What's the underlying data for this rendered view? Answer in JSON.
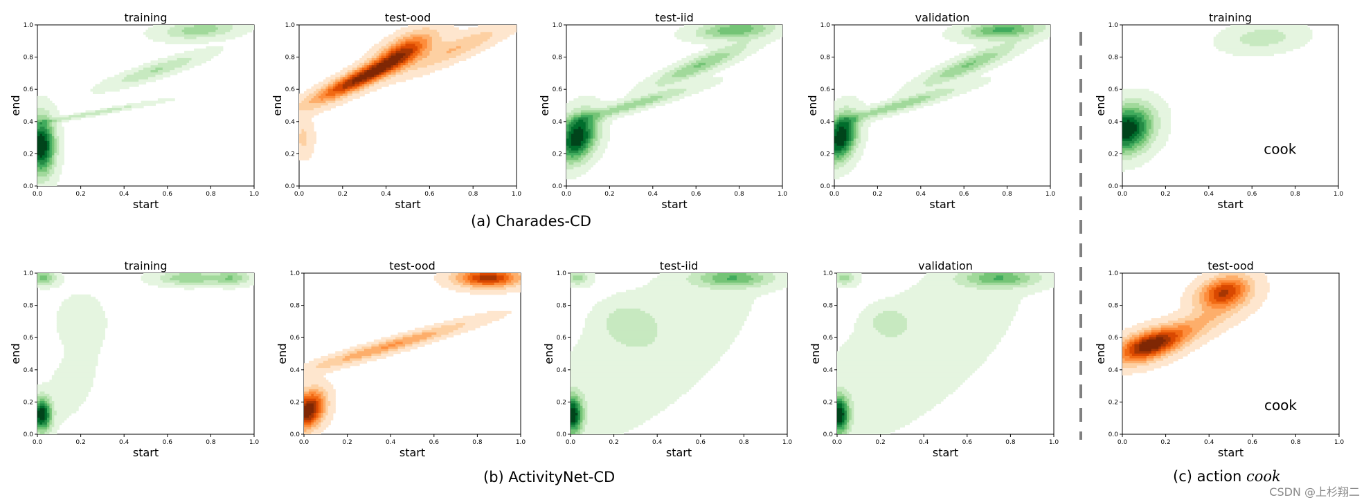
{
  "colors": {
    "greens": [
      "#e5f5e0",
      "#c7e9c0",
      "#a1d99b",
      "#74c476",
      "#41ab5d",
      "#238b45",
      "#006d2c",
      "#00441b"
    ],
    "oranges": [
      "#fee6ce",
      "#fdd0a2",
      "#fdae6b",
      "#fd8d3c",
      "#f16913",
      "#d94801",
      "#a63603",
      "#7f2704"
    ],
    "divider": "#808080"
  },
  "captions": {
    "a": "(a) Charades-CD",
    "b": "(b) ActivityNet-CD",
    "c_prefix": "(c)  action ",
    "c_italic": "cook"
  },
  "watermark": "CSDN @上杉翔二",
  "chart_data": [
    {
      "id": "cha-training",
      "type": "kde-contour",
      "dataset": "Charades-CD",
      "title": "training",
      "xlabel": "start",
      "ylabel": "end",
      "xlim": [
        0,
        1
      ],
      "ylim": [
        0,
        1
      ],
      "ticks": [
        "0.0",
        "0.2",
        "0.4",
        "0.6",
        "0.8",
        "1.0"
      ],
      "cmap": "greens",
      "blobs": [
        {
          "x": 0.02,
          "y": 0.25,
          "sx": 0.04,
          "sy": 0.12,
          "rho": 0,
          "w": 1.0
        },
        {
          "x": 0.25,
          "y": 0.45,
          "sx": 0.2,
          "sy": 0.05,
          "rho": 0.98,
          "w": 0.25
        },
        {
          "x": 0.55,
          "y": 0.72,
          "sx": 0.15,
          "sy": 0.07,
          "rho": 0.9,
          "w": 0.28
        },
        {
          "x": 0.75,
          "y": 0.97,
          "sx": 0.12,
          "sy": 0.04,
          "rho": 0.3,
          "w": 0.35
        }
      ]
    },
    {
      "id": "cha-test-ood",
      "type": "kde-contour",
      "dataset": "Charades-CD",
      "title": "test-ood",
      "xlabel": "start",
      "ylabel": "end",
      "xlim": [
        0,
        1
      ],
      "ylim": [
        0,
        1
      ],
      "ticks": [
        "0.0",
        "0.2",
        "0.4",
        "0.6",
        "0.8",
        "1.0"
      ],
      "cmap": "oranges",
      "blobs": [
        {
          "x": 0.3,
          "y": 0.68,
          "sx": 0.16,
          "sy": 0.11,
          "rho": 0.92,
          "w": 1.0
        },
        {
          "x": 0.48,
          "y": 0.85,
          "sx": 0.09,
          "sy": 0.08,
          "rho": 0.7,
          "w": 0.6
        },
        {
          "x": 0.72,
          "y": 0.85,
          "sx": 0.16,
          "sy": 0.1,
          "rho": 0.9,
          "w": 0.3
        },
        {
          "x": 0.02,
          "y": 0.3,
          "sx": 0.03,
          "sy": 0.08,
          "rho": 0,
          "w": 0.2
        }
      ]
    },
    {
      "id": "cha-test-iid",
      "type": "kde-contour",
      "dataset": "Charades-CD",
      "title": "test-iid",
      "xlabel": "start",
      "ylabel": "end",
      "xlim": [
        0,
        1
      ],
      "ylim": [
        0,
        1
      ],
      "ticks": [
        "0.0",
        "0.2",
        "0.4",
        "0.6",
        "0.8",
        "1.0"
      ],
      "cmap": "greens",
      "blobs": [
        {
          "x": 0.05,
          "y": 0.3,
          "sx": 0.06,
          "sy": 0.1,
          "rho": 0.3,
          "w": 1.0
        },
        {
          "x": 0.3,
          "y": 0.5,
          "sx": 0.2,
          "sy": 0.08,
          "rho": 0.95,
          "w": 0.35
        },
        {
          "x": 0.62,
          "y": 0.75,
          "sx": 0.15,
          "sy": 0.09,
          "rho": 0.9,
          "w": 0.4
        },
        {
          "x": 0.78,
          "y": 0.97,
          "sx": 0.12,
          "sy": 0.04,
          "rho": 0.3,
          "w": 0.5
        }
      ]
    },
    {
      "id": "cha-validation",
      "type": "kde-contour",
      "dataset": "Charades-CD",
      "title": "validation",
      "xlabel": "start",
      "ylabel": "end",
      "xlim": [
        0,
        1
      ],
      "ylim": [
        0,
        1
      ],
      "ticks": [
        "0.0",
        "0.2",
        "0.4",
        "0.6",
        "0.8",
        "1.0"
      ],
      "cmap": "greens",
      "blobs": [
        {
          "x": 0.03,
          "y": 0.3,
          "sx": 0.05,
          "sy": 0.1,
          "rho": 0.3,
          "w": 1.0
        },
        {
          "x": 0.3,
          "y": 0.5,
          "sx": 0.2,
          "sy": 0.08,
          "rho": 0.95,
          "w": 0.35
        },
        {
          "x": 0.62,
          "y": 0.75,
          "sx": 0.15,
          "sy": 0.09,
          "rho": 0.9,
          "w": 0.4
        },
        {
          "x": 0.78,
          "y": 0.97,
          "sx": 0.12,
          "sy": 0.04,
          "rho": 0.3,
          "w": 0.55
        }
      ]
    },
    {
      "id": "cha-cook-training",
      "type": "kde-contour",
      "dataset": "Charades-CD",
      "action": "cook",
      "title": "training",
      "xlabel": "start",
      "ylabel": "end",
      "xlim": [
        0,
        1
      ],
      "ylim": [
        0,
        1
      ],
      "ticks": [
        "0.0",
        "0.2",
        "0.4",
        "0.6",
        "0.8",
        "1.0"
      ],
      "cmap": "greens",
      "annotation": "cook",
      "blobs": [
        {
          "x": 0.02,
          "y": 0.35,
          "sx": 0.08,
          "sy": 0.1,
          "rho": 0.2,
          "w": 1.0
        },
        {
          "x": 0.65,
          "y": 0.92,
          "sx": 0.12,
          "sy": 0.06,
          "rho": 0.2,
          "w": 0.22
        }
      ]
    },
    {
      "id": "anet-training",
      "type": "kde-contour",
      "dataset": "ActivityNet-CD",
      "title": "training",
      "xlabel": "start",
      "ylabel": "end",
      "xlim": [
        0,
        1
      ],
      "ylim": [
        0,
        1
      ],
      "ticks": [
        "0.0",
        "0.2",
        "0.4",
        "0.6",
        "0.8",
        "1.0"
      ],
      "cmap": "greens",
      "blobs": [
        {
          "x": 0.02,
          "y": 0.12,
          "sx": 0.03,
          "sy": 0.07,
          "rho": 0,
          "w": 1.0
        },
        {
          "x": 0.03,
          "y": 0.97,
          "sx": 0.04,
          "sy": 0.03,
          "rho": 0,
          "w": 0.45
        },
        {
          "x": 0.7,
          "y": 0.97,
          "sx": 0.1,
          "sy": 0.03,
          "rho": 0,
          "w": 0.4
        },
        {
          "x": 0.9,
          "y": 0.97,
          "sx": 0.06,
          "sy": 0.03,
          "rho": 0,
          "w": 0.35
        },
        {
          "x": 0.2,
          "y": 0.7,
          "sx": 0.08,
          "sy": 0.12,
          "rho": 0,
          "w": 0.1
        },
        {
          "x": 0.15,
          "y": 0.3,
          "sx": 0.08,
          "sy": 0.15,
          "rho": 0.5,
          "w": 0.1
        }
      ]
    },
    {
      "id": "anet-test-ood",
      "type": "kde-contour",
      "dataset": "ActivityNet-CD",
      "title": "test-ood",
      "xlabel": "start",
      "ylabel": "end",
      "xlim": [
        0,
        1
      ],
      "ylim": [
        0,
        1
      ],
      "ticks": [
        "0.0",
        "0.2",
        "0.4",
        "0.6",
        "0.8",
        "1.0"
      ],
      "cmap": "oranges",
      "blobs": [
        {
          "x": 0.02,
          "y": 0.15,
          "sx": 0.05,
          "sy": 0.08,
          "rho": 0.3,
          "w": 1.0
        },
        {
          "x": 0.4,
          "y": 0.55,
          "sx": 0.25,
          "sy": 0.1,
          "rho": 0.96,
          "w": 0.4
        },
        {
          "x": 0.85,
          "y": 0.97,
          "sx": 0.1,
          "sy": 0.04,
          "rho": 0,
          "w": 0.8
        }
      ]
    },
    {
      "id": "anet-test-iid",
      "type": "kde-contour",
      "dataset": "ActivityNet-CD",
      "title": "test-iid",
      "xlabel": "start",
      "ylabel": "end",
      "xlim": [
        0,
        1
      ],
      "ylim": [
        0,
        1
      ],
      "ticks": [
        "0.0",
        "0.2",
        "0.4",
        "0.6",
        "0.8",
        "1.0"
      ],
      "cmap": "greens",
      "blobs": [
        {
          "x": 0.01,
          "y": 0.12,
          "sx": 0.03,
          "sy": 0.08,
          "rho": 0,
          "w": 1.0
        },
        {
          "x": 0.03,
          "y": 0.97,
          "sx": 0.04,
          "sy": 0.03,
          "rho": 0,
          "w": 0.35
        },
        {
          "x": 0.75,
          "y": 0.97,
          "sx": 0.12,
          "sy": 0.04,
          "rho": 0,
          "w": 0.5
        },
        {
          "x": 0.25,
          "y": 0.7,
          "sx": 0.08,
          "sy": 0.08,
          "rho": 0,
          "w": 0.2
        },
        {
          "x": 0.35,
          "y": 0.5,
          "sx": 0.3,
          "sy": 0.35,
          "rho": 0.7,
          "w": 0.15
        }
      ]
    },
    {
      "id": "anet-validation",
      "type": "kde-contour",
      "dataset": "ActivityNet-CD",
      "title": "validation",
      "xlabel": "start",
      "ylabel": "end",
      "xlim": [
        0,
        1
      ],
      "ylim": [
        0,
        1
      ],
      "ticks": [
        "0.0",
        "0.2",
        "0.4",
        "0.6",
        "0.8",
        "1.0"
      ],
      "cmap": "greens",
      "blobs": [
        {
          "x": 0.01,
          "y": 0.12,
          "sx": 0.03,
          "sy": 0.08,
          "rho": 0,
          "w": 1.0
        },
        {
          "x": 0.03,
          "y": 0.97,
          "sx": 0.04,
          "sy": 0.03,
          "rho": 0,
          "w": 0.35
        },
        {
          "x": 0.75,
          "y": 0.97,
          "sx": 0.12,
          "sy": 0.04,
          "rho": 0,
          "w": 0.5
        },
        {
          "x": 0.23,
          "y": 0.7,
          "sx": 0.06,
          "sy": 0.06,
          "rho": 0,
          "w": 0.2
        },
        {
          "x": 0.35,
          "y": 0.5,
          "sx": 0.3,
          "sy": 0.35,
          "rho": 0.7,
          "w": 0.15
        }
      ]
    },
    {
      "id": "anet-cook-test-ood",
      "type": "kde-contour",
      "dataset": "ActivityNet-CD",
      "action": "cook",
      "title": "test-ood",
      "xlabel": "start",
      "ylabel": "end",
      "xlim": [
        0,
        1
      ],
      "ylim": [
        0,
        1
      ],
      "ticks": [
        "0.0",
        "0.2",
        "0.4",
        "0.6",
        "0.8",
        "1.0"
      ],
      "cmap": "oranges",
      "annotation": "cook",
      "blobs": [
        {
          "x": 0.12,
          "y": 0.55,
          "sx": 0.1,
          "sy": 0.07,
          "rho": 0.5,
          "w": 1.0
        },
        {
          "x": 0.47,
          "y": 0.88,
          "sx": 0.08,
          "sy": 0.07,
          "rho": 0.3,
          "w": 0.9
        },
        {
          "x": 0.3,
          "y": 0.65,
          "sx": 0.15,
          "sy": 0.1,
          "rho": 0.8,
          "w": 0.35
        }
      ]
    }
  ]
}
